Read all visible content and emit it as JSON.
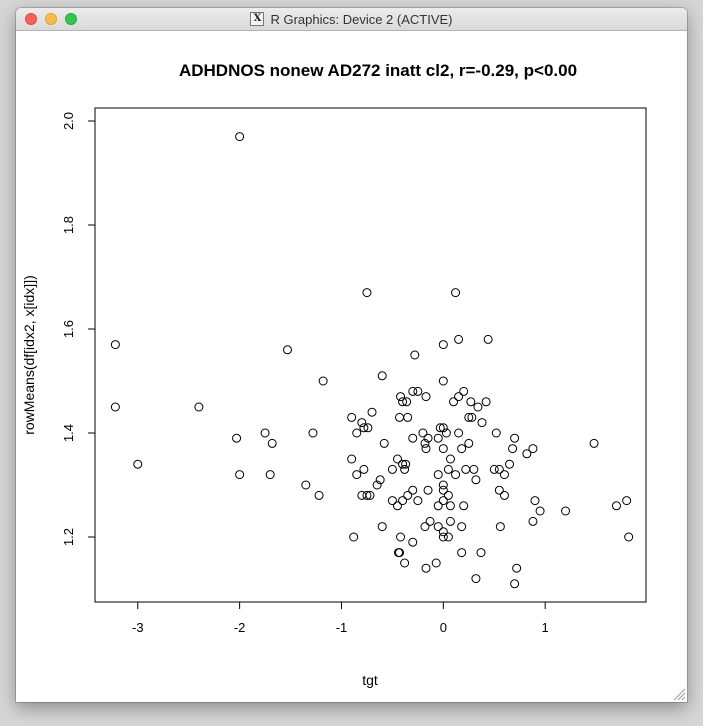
{
  "window": {
    "title": "R Graphics: Device 2 (ACTIVE)",
    "icon": "x11-icon"
  },
  "chart_data": {
    "type": "scatter",
    "title": "ADHDNOS nonew AD272 inatt cl2, r=-0.29, p<0.00",
    "xlabel": "tgt",
    "ylabel": "rowMeans(df[idx2, x[idx]])",
    "xlim": [
      -3.42,
      1.99
    ],
    "ylim": [
      1.075,
      2.025
    ],
    "x_ticks": [
      -3,
      -2,
      -1,
      0,
      1
    ],
    "y_ticks": [
      1.2,
      1.4,
      1.6,
      1.8,
      2.0
    ],
    "x_tick_labels": [
      "-3",
      "-2",
      "-1",
      "0",
      "1"
    ],
    "y_tick_labels": [
      "1.2",
      "1.4",
      "1.6",
      "1.8",
      "2.0"
    ],
    "grid": false,
    "marker": "open-circle",
    "points": [
      [
        -2.0,
        1.97
      ],
      [
        -3.22,
        1.57
      ],
      [
        -3.22,
        1.45
      ],
      [
        -3.0,
        1.34
      ],
      [
        -2.4,
        1.45
      ],
      [
        -2.03,
        1.39
      ],
      [
        -2.0,
        1.32
      ],
      [
        -1.75,
        1.4
      ],
      [
        -1.68,
        1.38
      ],
      [
        -1.7,
        1.32
      ],
      [
        -1.53,
        1.56
      ],
      [
        -1.35,
        1.3
      ],
      [
        -1.28,
        1.4
      ],
      [
        -1.22,
        1.28
      ],
      [
        -1.18,
        1.5
      ],
      [
        -0.75,
        1.67
      ],
      [
        0.12,
        1.67
      ],
      [
        0.15,
        1.58
      ],
      [
        0.44,
        1.58
      ],
      [
        -0.28,
        1.55
      ],
      [
        0.0,
        1.57
      ],
      [
        -0.6,
        1.51
      ],
      [
        0.0,
        1.5
      ],
      [
        -0.3,
        1.48
      ],
      [
        -0.25,
        1.48
      ],
      [
        -0.17,
        1.47
      ],
      [
        -0.42,
        1.47
      ],
      [
        -0.4,
        1.46
      ],
      [
        -0.36,
        1.46
      ],
      [
        0.1,
        1.46
      ],
      [
        0.15,
        1.47
      ],
      [
        0.2,
        1.48
      ],
      [
        0.27,
        1.46
      ],
      [
        0.42,
        1.46
      ],
      [
        0.34,
        1.45
      ],
      [
        -0.7,
        1.44
      ],
      [
        -0.9,
        1.43
      ],
      [
        -0.43,
        1.43
      ],
      [
        -0.35,
        1.43
      ],
      [
        0.25,
        1.43
      ],
      [
        0.28,
        1.43
      ],
      [
        0.38,
        1.42
      ],
      [
        -0.74,
        1.41
      ],
      [
        -0.8,
        1.42
      ],
      [
        -0.78,
        1.41
      ],
      [
        -0.85,
        1.4
      ],
      [
        -0.2,
        1.4
      ],
      [
        -0.15,
        1.39
      ],
      [
        -0.05,
        1.39
      ],
      [
        -0.03,
        1.41
      ],
      [
        0.0,
        1.41
      ],
      [
        0.03,
        1.4
      ],
      [
        0.15,
        1.4
      ],
      [
        0.25,
        1.38
      ],
      [
        0.52,
        1.4
      ],
      [
        0.7,
        1.39
      ],
      [
        0.68,
        1.37
      ],
      [
        0.88,
        1.37
      ],
      [
        1.48,
        1.38
      ],
      [
        -0.58,
        1.38
      ],
      [
        -0.3,
        1.39
      ],
      [
        -0.18,
        1.38
      ],
      [
        -0.17,
        1.37
      ],
      [
        0.0,
        1.37
      ],
      [
        0.18,
        1.37
      ],
      [
        0.07,
        1.35
      ],
      [
        -0.9,
        1.35
      ],
      [
        -0.45,
        1.35
      ],
      [
        -0.4,
        1.34
      ],
      [
        -0.37,
        1.34
      ],
      [
        -0.78,
        1.33
      ],
      [
        -0.85,
        1.32
      ],
      [
        -0.5,
        1.33
      ],
      [
        -0.38,
        1.33
      ],
      [
        0.05,
        1.33
      ],
      [
        0.12,
        1.32
      ],
      [
        0.22,
        1.33
      ],
      [
        0.3,
        1.33
      ],
      [
        0.5,
        1.33
      ],
      [
        0.55,
        1.33
      ],
      [
        0.6,
        1.32
      ],
      [
        0.65,
        1.34
      ],
      [
        0.82,
        1.36
      ],
      [
        -0.05,
        1.32
      ],
      [
        0.32,
        1.31
      ],
      [
        0.0,
        1.3
      ],
      [
        -0.62,
        1.31
      ],
      [
        -0.65,
        1.3
      ],
      [
        -0.15,
        1.29
      ],
      [
        0.0,
        1.29
      ],
      [
        0.05,
        1.28
      ],
      [
        0.0,
        1.27
      ],
      [
        -0.3,
        1.29
      ],
      [
        -0.35,
        1.28
      ],
      [
        -0.8,
        1.28
      ],
      [
        -0.75,
        1.28
      ],
      [
        -0.72,
        1.28
      ],
      [
        -0.25,
        1.27
      ],
      [
        -0.5,
        1.27
      ],
      [
        -0.4,
        1.27
      ],
      [
        -0.45,
        1.26
      ],
      [
        -0.05,
        1.26
      ],
      [
        0.07,
        1.26
      ],
      [
        0.2,
        1.26
      ],
      [
        0.55,
        1.29
      ],
      [
        0.6,
        1.28
      ],
      [
        0.9,
        1.27
      ],
      [
        0.95,
        1.25
      ],
      [
        1.2,
        1.25
      ],
      [
        1.8,
        1.27
      ],
      [
        1.7,
        1.26
      ],
      [
        1.82,
        1.2
      ],
      [
        0.88,
        1.23
      ],
      [
        -0.6,
        1.22
      ],
      [
        -0.18,
        1.22
      ],
      [
        -0.13,
        1.23
      ],
      [
        0.07,
        1.23
      ],
      [
        0.18,
        1.22
      ],
      [
        0.0,
        1.21
      ],
      [
        -0.05,
        1.22
      ],
      [
        0.05,
        1.2
      ],
      [
        0.56,
        1.22
      ],
      [
        -0.88,
        1.2
      ],
      [
        -0.42,
        1.2
      ],
      [
        -0.3,
        1.19
      ],
      [
        0.0,
        1.2
      ],
      [
        -0.44,
        1.17
      ],
      [
        -0.43,
        1.17
      ],
      [
        0.18,
        1.17
      ],
      [
        0.37,
        1.17
      ],
      [
        -0.38,
        1.15
      ],
      [
        -0.07,
        1.15
      ],
      [
        -0.17,
        1.14
      ],
      [
        0.72,
        1.14
      ],
      [
        0.32,
        1.12
      ],
      [
        0.7,
        1.11
      ]
    ]
  }
}
